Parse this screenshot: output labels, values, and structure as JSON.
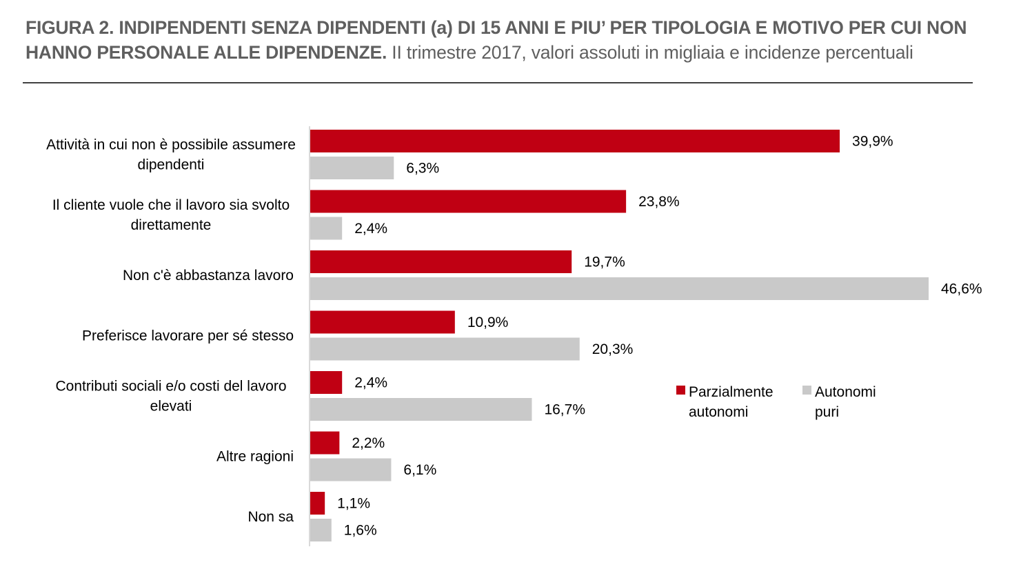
{
  "title": {
    "bold": "FIGURA 2. INDIPENDENTI SENZA DIPENDENTI (a) DI 15 ANNI E PIU’ PER TIPOLOGIA E MOTIVO PER CUI NON HANNO PERSONALE ALLE DIPENDENZE.",
    "normal": " II trimestre 2017, valori assoluti in migliaia e incidenze percentuali"
  },
  "colors": {
    "parzialmente": "#c00013",
    "autonomi": "#c9c9c9",
    "axis": "#d9d9d9"
  },
  "chart_data": {
    "type": "bar",
    "orientation": "horizontal",
    "categories": [
      [
        "Attività in cui non è possibile assumere",
        "dipendenti"
      ],
      [
        "Il cliente vuole che il lavoro sia svolto",
        "direttamente"
      ],
      [
        "Non c'è abbastanza lavoro"
      ],
      [
        "Preferisce lavorare per sé stesso"
      ],
      [
        "Contributi sociali e/o costi del lavoro",
        "elevati"
      ],
      [
        "Altre ragioni"
      ],
      [
        "Non sa"
      ]
    ],
    "series": [
      {
        "name": "Parzialmente autonomi",
        "legend_lines": [
          "Parzialmente",
          "autonomi"
        ],
        "values": [
          39.9,
          23.8,
          19.7,
          10.9,
          2.4,
          2.2,
          1.1
        ],
        "labels": [
          "39,9%",
          "23,8%",
          "19,7%",
          "10,9%",
          "2,4%",
          "2,2%",
          "1,1%"
        ]
      },
      {
        "name": "Autonomi puri",
        "legend_lines": [
          "Autonomi",
          "puri"
        ],
        "values": [
          6.3,
          2.4,
          46.6,
          20.3,
          16.7,
          6.1,
          1.6
        ],
        "labels": [
          "6,3%",
          "2,4%",
          "46,6%",
          "20,3%",
          "16,7%",
          "6,1%",
          "1,6%"
        ]
      }
    ],
    "xlim": [
      0,
      46.6
    ],
    "legend_position": "right-middle"
  }
}
